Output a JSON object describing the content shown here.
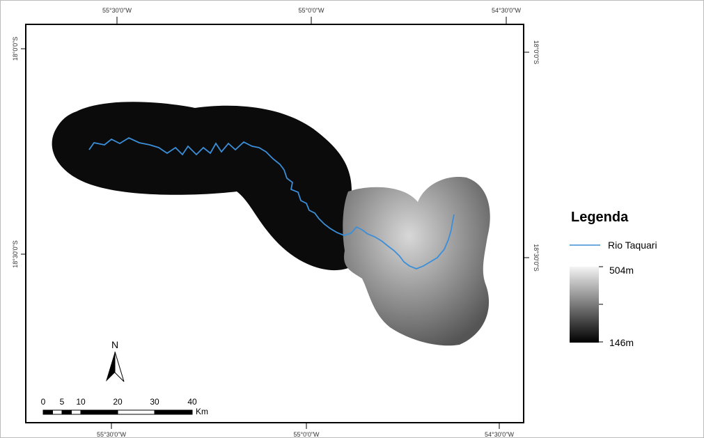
{
  "map": {
    "top_labels": [
      "55°30'0\"W",
      "55°0'0\"W",
      "54°30'0\"W"
    ],
    "bottom_labels": [
      "55°30'0\"W",
      "55°0'0\"W",
      "54°30'0\"W"
    ],
    "left_labels": [
      "18°0'0\"S",
      "18°30'0\"S"
    ],
    "right_labels": [
      "18°0'0\"S",
      "18°30'0\"S"
    ],
    "north": "N",
    "scale": {
      "ticks": [
        "0",
        "5",
        "10",
        "20",
        "30",
        "40"
      ],
      "unit": "Km"
    },
    "legend": {
      "title": "Legenda",
      "river": "Rio Taquari",
      "high": "504m",
      "low": "146m"
    }
  }
}
